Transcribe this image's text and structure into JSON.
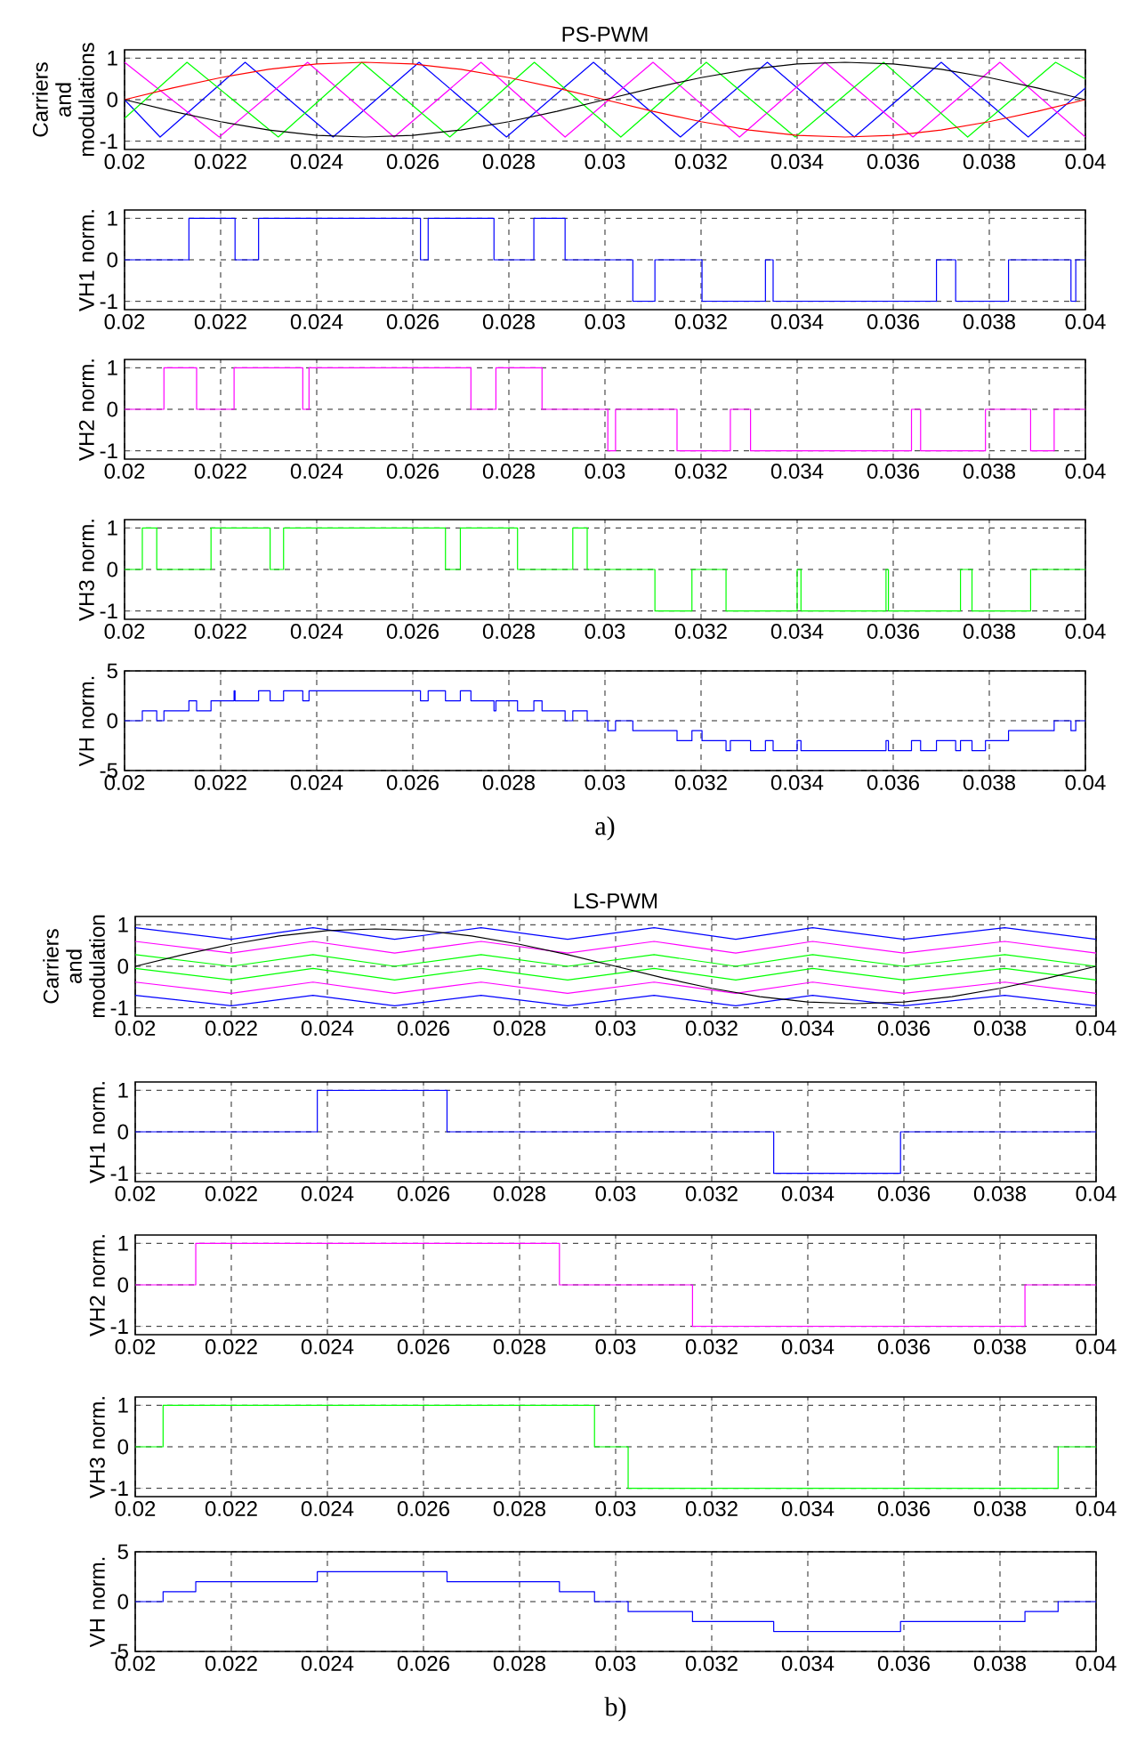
{
  "chart_data": [
    {
      "type": "line",
      "title": "PS-PWM",
      "ylabel": "Carriers and modulations",
      "xlim": [
        0.02,
        0.04
      ],
      "ylim": [
        -1.2,
        1.2
      ],
      "xticks": [
        0.02,
        0.022,
        0.024,
        0.026,
        0.028,
        0.03,
        0.032,
        0.034,
        0.036,
        0.038,
        0.04
      ],
      "yticks": [
        -1,
        0,
        1
      ],
      "grid": true,
      "series": [
        {
          "color": "#0000ff",
          "x": [
            0.02,
            0.02074,
            0.02251,
            0.02434,
            0.02613,
            0.02795,
            0.02976,
            0.03157,
            0.03338,
            0.03519,
            0.037,
            0.03881,
            0.04
          ],
          "values": [
            0,
            -0.9,
            0.9,
            -0.9,
            0.9,
            -0.9,
            0.9,
            -0.9,
            0.9,
            -0.9,
            0.9,
            -0.9,
            0.28
          ]
        },
        {
          "color": "#ff00ff",
          "x": [
            0.02,
            0.02197,
            0.02381,
            0.02561,
            0.02742,
            0.02917,
            0.031,
            0.0328,
            0.03458,
            0.03641,
            0.03822,
            0.04
          ],
          "values": [
            0.9,
            -0.9,
            0.9,
            -0.9,
            0.9,
            -0.9,
            0.9,
            -0.9,
            0.9,
            -0.9,
            0.9,
            -0.9
          ]
        },
        {
          "color": "#00ff00",
          "x": [
            0.02,
            0.0213,
            0.0232,
            0.02494,
            0.02677,
            0.02853,
            0.03033,
            0.03211,
            0.03396,
            0.0358,
            0.03755,
            0.03938,
            0.04
          ],
          "values": [
            -0.45,
            0.9,
            -0.9,
            0.9,
            -0.9,
            0.9,
            -0.9,
            0.9,
            -0.9,
            0.9,
            -0.9,
            0.9,
            0.5
          ]
        },
        {
          "color": "#ff0000",
          "x": [
            0.02,
            0.021,
            0.022,
            0.023,
            0.024,
            0.025,
            0.026,
            0.027,
            0.028,
            0.029,
            0.03,
            0.031,
            0.032,
            0.033,
            0.034,
            0.035,
            0.036,
            0.037,
            0.038,
            0.039,
            0.04
          ],
          "values": [
            0,
            0.28,
            0.53,
            0.73,
            0.86,
            0.9,
            0.86,
            0.73,
            0.53,
            0.28,
            0,
            -0.28,
            -0.53,
            -0.73,
            -0.86,
            -0.9,
            -0.86,
            -0.73,
            -0.53,
            -0.28,
            0
          ]
        },
        {
          "color": "#000000",
          "x": [
            0.02,
            0.021,
            0.022,
            0.023,
            0.024,
            0.025,
            0.026,
            0.027,
            0.028,
            0.029,
            0.03,
            0.031,
            0.032,
            0.033,
            0.034,
            0.035,
            0.036,
            0.037,
            0.038,
            0.039,
            0.04
          ],
          "values": [
            0,
            -0.28,
            -0.53,
            -0.73,
            -0.86,
            -0.9,
            -0.86,
            -0.73,
            -0.53,
            -0.28,
            0,
            0.28,
            0.53,
            0.73,
            0.86,
            0.9,
            0.86,
            0.73,
            0.53,
            0.28,
            0
          ]
        }
      ]
    },
    {
      "type": "step",
      "ylabel": "VH1 norm.",
      "xlim": [
        0.02,
        0.04
      ],
      "ylim": [
        -1.2,
        1.2
      ],
      "xticks": [
        0.02,
        0.022,
        0.024,
        0.026,
        0.028,
        0.03,
        0.032,
        0.034,
        0.036,
        0.038,
        0.04
      ],
      "yticks": [
        -1,
        0,
        1
      ],
      "grid": true,
      "series": [
        {
          "color": "#0000ff",
          "x": [
            0.02,
            0.02134,
            0.0223,
            0.02279,
            0.02616,
            0.02632,
            0.02769,
            0.02852,
            0.02917,
            0.03058,
            0.03104,
            0.03202,
            0.03334,
            0.0335,
            0.0369,
            0.0373,
            0.0384,
            0.0397,
            0.0398,
            0.04
          ],
          "values": [
            0,
            1,
            0,
            1,
            0,
            1,
            0,
            1,
            0,
            -1,
            0,
            -1,
            0,
            -1,
            0,
            -1,
            0,
            -1,
            0,
            0
          ]
        }
      ]
    },
    {
      "type": "step",
      "ylabel": "VH2 norm.",
      "xlim": [
        0.02,
        0.04
      ],
      "ylim": [
        -1.2,
        1.2
      ],
      "xticks": [
        0.02,
        0.022,
        0.024,
        0.026,
        0.028,
        0.03,
        0.032,
        0.034,
        0.036,
        0.038,
        0.04
      ],
      "yticks": [
        -1,
        0,
        1
      ],
      "grid": true,
      "series": [
        {
          "color": "#ff00ff",
          "x": [
            0.02,
            0.02082,
            0.0215,
            0.02228,
            0.02371,
            0.02384,
            0.02721,
            0.02773,
            0.02869,
            0.03006,
            0.03022,
            0.0315,
            0.03261,
            0.03303,
            0.03638,
            0.03657,
            0.03792,
            0.03886,
            0.03935,
            0.04
          ],
          "values": [
            0,
            1,
            0,
            1,
            0,
            1,
            0,
            1,
            0,
            -1,
            0,
            -1,
            0,
            -1,
            0,
            -1,
            0,
            -1,
            0,
            0
          ]
        }
      ]
    },
    {
      "type": "step",
      "ylabel": "VH3 norm.",
      "xlim": [
        0.02,
        0.04
      ],
      "ylim": [
        -1.2,
        1.2
      ],
      "xticks": [
        0.02,
        0.022,
        0.024,
        0.026,
        0.028,
        0.03,
        0.032,
        0.034,
        0.036,
        0.038,
        0.04
      ],
      "yticks": [
        -1,
        0,
        1
      ],
      "grid": true,
      "series": [
        {
          "color": "#00ff00",
          "x": [
            0.02,
            0.02037,
            0.02067,
            0.0218,
            0.02303,
            0.02331,
            0.02668,
            0.02699,
            0.02818,
            0.02933,
            0.02963,
            0.03104,
            0.03181,
            0.03252,
            0.034,
            0.03408,
            0.03585,
            0.0359,
            0.0374,
            0.03764,
            0.03886,
            0.04
          ],
          "values": [
            0,
            1,
            0,
            1,
            0,
            1,
            0,
            1,
            0,
            1,
            0,
            -1,
            0,
            -1,
            0,
            -1,
            0,
            -1,
            0,
            -1,
            0,
            0
          ]
        }
      ]
    },
    {
      "type": "step",
      "ylabel": "VH norm.",
      "xlim": [
        0.02,
        0.04
      ],
      "ylim": [
        -5,
        5
      ],
      "xticks": [
        0.02,
        0.022,
        0.024,
        0.026,
        0.028,
        0.03,
        0.032,
        0.034,
        0.036,
        0.038,
        0.04
      ],
      "yticks": [
        -5,
        0,
        5
      ],
      "grid": true,
      "annotations": [
        "a)"
      ],
      "series": [
        {
          "color": "#0000ff",
          "x": [
            0.02,
            0.02037,
            0.02067,
            0.02082,
            0.02134,
            0.0215,
            0.0218,
            0.02228,
            0.0223,
            0.02279,
            0.02303,
            0.02331,
            0.02371,
            0.02384,
            0.02616,
            0.02632,
            0.02668,
            0.02699,
            0.02721,
            0.02769,
            0.02773,
            0.02818,
            0.02852,
            0.02869,
            0.02917,
            0.02933,
            0.02963,
            0.03006,
            0.03022,
            0.03058,
            0.0315,
            0.03181,
            0.03202,
            0.03252,
            0.03261,
            0.03303,
            0.03334,
            0.0335,
            0.034,
            0.03408,
            0.03585,
            0.0359,
            0.03638,
            0.03657,
            0.0369,
            0.0373,
            0.0374,
            0.03764,
            0.03792,
            0.0384,
            0.03935,
            0.0397,
            0.0398,
            0.04
          ],
          "values": [
            0,
            1,
            0,
            1,
            2,
            1,
            2,
            3,
            2,
            3,
            2,
            3,
            2,
            3,
            2,
            3,
            2,
            3,
            2,
            1,
            2,
            1,
            2,
            1,
            0,
            1,
            0,
            -1,
            0,
            -1,
            -2,
            -1,
            -2,
            -3,
            -2,
            -3,
            -2,
            -3,
            -2,
            -3,
            -2,
            -3,
            -2,
            -3,
            -2,
            -3,
            -2,
            -3,
            -2,
            -1,
            0,
            -1,
            0,
            0
          ]
        }
      ]
    },
    {
      "type": "line",
      "title": "LS-PWM",
      "ylabel": "Carriers and modulation",
      "xlim": [
        0.02,
        0.04
      ],
      "ylim": [
        -1.2,
        1.2
      ],
      "xticks": [
        0.02,
        0.022,
        0.024,
        0.026,
        0.028,
        0.03,
        0.032,
        0.034,
        0.036,
        0.038,
        0.04
      ],
      "yticks": [
        -1,
        0,
        1
      ],
      "grid": true,
      "series": [
        {
          "color": "#0000ff",
          "x": [
            0.02,
            0.022,
            0.0237,
            0.0254,
            0.0272,
            0.029,
            0.0308,
            0.0325,
            0.0341,
            0.036,
            0.0381,
            0.04
          ],
          "values": [
            0.93,
            0.65,
            0.93,
            0.65,
            0.93,
            0.65,
            0.93,
            0.65,
            0.93,
            0.65,
            0.93,
            0.65
          ]
        },
        {
          "color": "#ff00ff",
          "x": [
            0.02,
            0.022,
            0.0237,
            0.0254,
            0.0272,
            0.029,
            0.0308,
            0.0325,
            0.0341,
            0.036,
            0.0381,
            0.04
          ],
          "values": [
            0.6,
            0.32,
            0.6,
            0.32,
            0.6,
            0.32,
            0.6,
            0.32,
            0.6,
            0.32,
            0.6,
            0.32
          ]
        },
        {
          "color": "#00ff00",
          "x": [
            0.02,
            0.022,
            0.0237,
            0.0254,
            0.0272,
            0.029,
            0.0308,
            0.0325,
            0.0341,
            0.036,
            0.0381,
            0.04
          ],
          "values": [
            0.28,
            0,
            0.28,
            0,
            0.28,
            0,
            0.28,
            0,
            0.28,
            0,
            0.28,
            0
          ]
        },
        {
          "color": "#00ff00",
          "x": [
            0.02,
            0.022,
            0.0237,
            0.0254,
            0.0272,
            0.029,
            0.0308,
            0.0325,
            0.0341,
            0.036,
            0.0381,
            0.04
          ],
          "values": [
            -0.05,
            -0.33,
            -0.05,
            -0.33,
            -0.05,
            -0.33,
            -0.05,
            -0.33,
            -0.05,
            -0.33,
            -0.05,
            -0.33
          ]
        },
        {
          "color": "#ff00ff",
          "x": [
            0.02,
            0.022,
            0.0237,
            0.0254,
            0.0272,
            0.029,
            0.0308,
            0.0325,
            0.0341,
            0.036,
            0.0381,
            0.04
          ],
          "values": [
            -0.38,
            -0.65,
            -0.38,
            -0.65,
            -0.38,
            -0.65,
            -0.38,
            -0.65,
            -0.38,
            -0.65,
            -0.38,
            -0.65
          ]
        },
        {
          "color": "#0000ff",
          "x": [
            0.02,
            0.022,
            0.0237,
            0.0254,
            0.0272,
            0.029,
            0.0308,
            0.0325,
            0.0341,
            0.036,
            0.0381,
            0.04
          ],
          "values": [
            -0.7,
            -0.95,
            -0.7,
            -0.95,
            -0.7,
            -0.95,
            -0.7,
            -0.95,
            -0.7,
            -0.95,
            -0.7,
            -0.95
          ]
        },
        {
          "color": "#000000",
          "x": [
            0.02,
            0.021,
            0.022,
            0.023,
            0.024,
            0.025,
            0.026,
            0.027,
            0.028,
            0.029,
            0.03,
            0.031,
            0.032,
            0.033,
            0.034,
            0.035,
            0.036,
            0.037,
            0.038,
            0.039,
            0.04
          ],
          "values": [
            0,
            0.28,
            0.53,
            0.73,
            0.86,
            0.9,
            0.86,
            0.73,
            0.53,
            0.28,
            0,
            -0.28,
            -0.53,
            -0.73,
            -0.86,
            -0.9,
            -0.86,
            -0.73,
            -0.53,
            -0.28,
            0
          ]
        }
      ]
    },
    {
      "type": "step",
      "ylabel": "VH1 norm.",
      "xlim": [
        0.02,
        0.04
      ],
      "ylim": [
        -1.2,
        1.2
      ],
      "xticks": [
        0.02,
        0.022,
        0.024,
        0.026,
        0.028,
        0.03,
        0.032,
        0.034,
        0.036,
        0.038,
        0.04
      ],
      "yticks": [
        -1,
        0,
        1
      ],
      "grid": true,
      "series": [
        {
          "color": "#0000ff",
          "x": [
            0.02,
            0.02379,
            0.02649,
            0.03329,
            0.03593,
            0.04
          ],
          "values": [
            0,
            1,
            0,
            -1,
            0,
            0
          ]
        }
      ]
    },
    {
      "type": "step",
      "ylabel": "VH2 norm.",
      "xlim": [
        0.02,
        0.04
      ],
      "ylim": [
        -1.2,
        1.2
      ],
      "xticks": [
        0.02,
        0.022,
        0.024,
        0.026,
        0.028,
        0.03,
        0.032,
        0.034,
        0.036,
        0.038,
        0.04
      ],
      "yticks": [
        -1,
        0,
        1
      ],
      "grid": true,
      "series": [
        {
          "color": "#ff00ff",
          "x": [
            0.02,
            0.02126,
            0.02883,
            0.0316,
            0.03852,
            0.04
          ],
          "values": [
            0,
            1,
            0,
            -1,
            0,
            0
          ]
        }
      ]
    },
    {
      "type": "step",
      "ylabel": "VH3 norm.",
      "xlim": [
        0.02,
        0.04
      ],
      "ylim": [
        -1.2,
        1.2
      ],
      "xticks": [
        0.02,
        0.022,
        0.024,
        0.026,
        0.028,
        0.03,
        0.032,
        0.034,
        0.036,
        0.038,
        0.04
      ],
      "yticks": [
        -1,
        0,
        1
      ],
      "grid": true,
      "series": [
        {
          "color": "#00ff00",
          "x": [
            0.02,
            0.02058,
            0.02956,
            0.03026,
            0.03921,
            0.04
          ],
          "values": [
            0,
            1,
            0,
            -1,
            0,
            0
          ]
        }
      ]
    },
    {
      "type": "step",
      "ylabel": "VH norm.",
      "xlim": [
        0.02,
        0.04
      ],
      "ylim": [
        -5,
        5
      ],
      "xticks": [
        0.02,
        0.022,
        0.024,
        0.026,
        0.028,
        0.03,
        0.032,
        0.034,
        0.036,
        0.038,
        0.04
      ],
      "yticks": [
        -5,
        0,
        5
      ],
      "grid": true,
      "annotations": [
        "b)"
      ],
      "series": [
        {
          "color": "#0000ff",
          "x": [
            0.02,
            0.02058,
            0.02126,
            0.02379,
            0.02649,
            0.02883,
            0.02956,
            0.03026,
            0.0316,
            0.03329,
            0.03593,
            0.03852,
            0.03921,
            0.04
          ],
          "values": [
            0,
            1,
            2,
            3,
            2,
            1,
            0,
            -1,
            -2,
            -3,
            -2,
            -1,
            0,
            0
          ]
        }
      ]
    }
  ]
}
